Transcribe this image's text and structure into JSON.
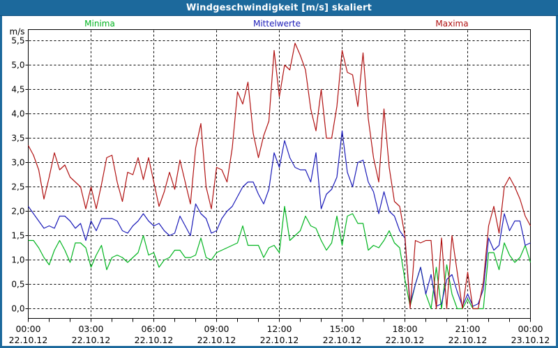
{
  "window_title": "Windgeschwindigkeit [m/s] skaliert",
  "colors": {
    "titlebar": "#1c699c",
    "frame": "#1c699c",
    "axis": "#000000",
    "minima": "#00b41e",
    "mittelwerte": "#1a1ab8",
    "maxima": "#b01010"
  },
  "chart_data": {
    "type": "line",
    "title": "Windgeschwindigkeit [m/s] skaliert",
    "y_unit": "m/s",
    "ylim": [
      0,
      5.5
    ],
    "grid": "dashed",
    "legend_position": "top",
    "x_start_hour": 0,
    "x_step_hours": 0.25,
    "x_ticks": [
      {
        "time": "00:00",
        "date": "22.10.12"
      },
      {
        "time": "03:00",
        "date": "22.10.12"
      },
      {
        "time": "06:00",
        "date": "22.10.12"
      },
      {
        "time": "09:00",
        "date": "22.10.12"
      },
      {
        "time": "12:00",
        "date": "22.10.12"
      },
      {
        "time": "15:00",
        "date": "22.10.12"
      },
      {
        "time": "18:00",
        "date": "22.10.12"
      },
      {
        "time": "21:00",
        "date": "22.10.12"
      },
      {
        "time": "00:00",
        "date": "23.10.12"
      }
    ],
    "y_ticks": [
      "0,0",
      "0,5",
      "1,0",
      "1,5",
      "2,0",
      "2,5",
      "3,0",
      "3,5",
      "4,0",
      "4,5",
      "5,0",
      "5,5"
    ],
    "series": [
      {
        "name": "Minima",
        "color": "#00b41e",
        "values": [
          1.4,
          1.4,
          1.25,
          1.05,
          0.9,
          1.2,
          1.4,
          1.2,
          0.95,
          1.35,
          1.35,
          1.25,
          0.85,
          1.1,
          1.3,
          0.8,
          1.05,
          1.1,
          1.05,
          0.95,
          1.05,
          1.15,
          1.5,
          1.1,
          1.15,
          0.85,
          1.0,
          1.05,
          1.2,
          1.2,
          1.05,
          1.05,
          1.1,
          1.45,
          1.05,
          1.0,
          1.15,
          1.2,
          1.25,
          1.3,
          1.35,
          1.7,
          1.3,
          1.3,
          1.3,
          1.05,
          1.25,
          1.3,
          1.15,
          2.1,
          1.4,
          1.5,
          1.6,
          1.9,
          1.7,
          1.65,
          1.4,
          1.2,
          1.35,
          1.9,
          1.3,
          1.9,
          1.95,
          1.75,
          1.75,
          1.2,
          1.3,
          1.25,
          1.4,
          1.6,
          1.35,
          1.25,
          0.6,
          0.05,
          0.5,
          0.85,
          0.3,
          0.0,
          0.85,
          0.0,
          0.9,
          0.3,
          0.0,
          0.0,
          0.2,
          0.0,
          0.0,
          0.0,
          1.15,
          1.15,
          0.8,
          1.35,
          1.1,
          0.95,
          1.05,
          1.3,
          0.95
        ]
      },
      {
        "name": "Mittelwerte",
        "color": "#1a1ab8",
        "values": [
          2.1,
          1.95,
          1.8,
          1.65,
          1.7,
          1.65,
          1.9,
          1.9,
          1.8,
          1.65,
          1.75,
          1.4,
          1.8,
          1.6,
          1.85,
          1.85,
          1.85,
          1.8,
          1.6,
          1.55,
          1.7,
          1.8,
          1.95,
          1.8,
          1.7,
          1.75,
          1.6,
          1.5,
          1.55,
          1.9,
          1.7,
          1.5,
          2.15,
          1.95,
          1.85,
          1.55,
          1.6,
          1.85,
          2.0,
          2.1,
          2.3,
          2.5,
          2.6,
          2.6,
          2.35,
          2.15,
          2.45,
          3.2,
          2.9,
          3.45,
          3.1,
          2.9,
          2.85,
          2.85,
          2.6,
          3.2,
          2.05,
          2.35,
          2.45,
          2.7,
          3.65,
          2.8,
          2.5,
          3.0,
          3.05,
          2.6,
          2.4,
          1.95,
          2.4,
          2.0,
          1.9,
          1.6,
          1.45,
          0.1,
          0.5,
          0.85,
          0.3,
          0.7,
          0.05,
          0.1,
          0.6,
          0.7,
          0.35,
          0.05,
          0.3,
          0.05,
          0.1,
          0.4,
          1.45,
          1.2,
          1.3,
          1.95,
          1.6,
          1.8,
          1.8,
          1.3,
          1.35
        ]
      },
      {
        "name": "Maxima",
        "color": "#b01010",
        "values": [
          3.35,
          3.15,
          2.85,
          2.25,
          2.7,
          3.2,
          2.85,
          2.95,
          2.7,
          2.6,
          2.5,
          2.05,
          2.5,
          2.05,
          2.55,
          3.1,
          3.15,
          2.6,
          2.2,
          2.8,
          2.75,
          3.1,
          2.65,
          3.1,
          2.6,
          2.1,
          2.4,
          2.8,
          2.45,
          3.05,
          2.6,
          2.15,
          3.3,
          3.8,
          2.5,
          2.05,
          2.9,
          2.85,
          2.6,
          3.3,
          4.45,
          4.2,
          4.65,
          3.6,
          3.1,
          3.55,
          3.85,
          5.3,
          4.35,
          5.0,
          4.9,
          5.45,
          5.2,
          4.9,
          4.1,
          3.65,
          4.5,
          3.5,
          3.5,
          4.15,
          5.3,
          4.85,
          4.8,
          4.15,
          5.25,
          3.9,
          3.1,
          2.6,
          4.1,
          2.9,
          2.2,
          2.1,
          1.5,
          0.0,
          1.4,
          1.35,
          1.4,
          1.4,
          0.0,
          1.45,
          0.0,
          1.5,
          0.75,
          0.0,
          0.75,
          0.0,
          0.0,
          0.55,
          1.7,
          2.1,
          1.55,
          2.5,
          2.7,
          2.5,
          2.25,
          1.9,
          1.7
        ]
      }
    ]
  }
}
